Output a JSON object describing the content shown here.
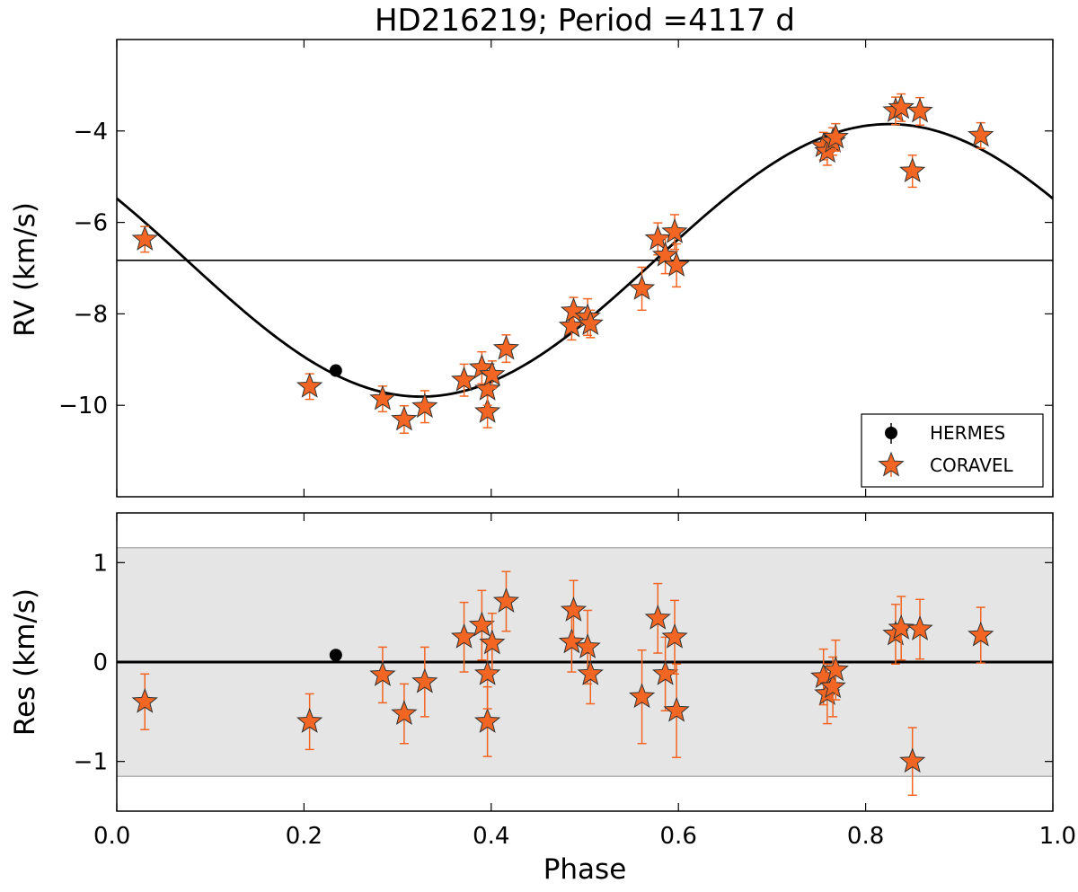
{
  "chart_data": [
    {
      "type": "scatter",
      "panel": "top",
      "title": "HD216219; Period =4117 d",
      "xlabel": "",
      "ylabel": "RV (km/s)",
      "xlim": [
        0.0,
        1.0
      ],
      "ylim": [
        -12.0,
        -2.0
      ],
      "yticks": [
        -4,
        -6,
        -8,
        -10
      ],
      "ytick_labels": [
        "−4",
        "−6",
        "−8",
        "−10"
      ],
      "grid": false,
      "legend_position": "lower-right",
      "systemic_velocity": -6.83,
      "fit": {
        "name": "orbit model",
        "mean": -6.83,
        "amplitude": 2.98,
        "phase_of_min": 0.325
      },
      "series": [
        {
          "name": "HERMES",
          "marker": "circle",
          "color": "#000000",
          "points": [
            {
              "x": 0.234,
              "y": -9.24,
              "err": 0.05
            }
          ]
        },
        {
          "name": "CORAVEL",
          "marker": "star",
          "color": "#f26522",
          "points": [
            {
              "x": 0.03,
              "y": -6.37,
              "err": 0.28
            },
            {
              "x": 0.206,
              "y": -9.59,
              "err": 0.28
            },
            {
              "x": 0.284,
              "y": -9.86,
              "err": 0.28
            },
            {
              "x": 0.307,
              "y": -10.31,
              "err": 0.3
            },
            {
              "x": 0.329,
              "y": -10.03,
              "err": 0.35
            },
            {
              "x": 0.371,
              "y": -9.45,
              "err": 0.35
            },
            {
              "x": 0.39,
              "y": -9.18,
              "err": 0.35
            },
            {
              "x": 0.396,
              "y": -10.14,
              "err": 0.35
            },
            {
              "x": 0.396,
              "y": -9.65,
              "err": 0.35
            },
            {
              "x": 0.401,
              "y": -9.33,
              "err": 0.3
            },
            {
              "x": 0.416,
              "y": -8.76,
              "err": 0.3
            },
            {
              "x": 0.486,
              "y": -8.27,
              "err": 0.3
            },
            {
              "x": 0.488,
              "y": -7.94,
              "err": 0.3
            },
            {
              "x": 0.503,
              "y": -8.07,
              "err": 0.4
            },
            {
              "x": 0.506,
              "y": -8.22,
              "err": 0.3
            },
            {
              "x": 0.561,
              "y": -7.45,
              "err": 0.47
            },
            {
              "x": 0.578,
              "y": -6.36,
              "err": 0.35
            },
            {
              "x": 0.586,
              "y": -6.72,
              "err": 0.4
            },
            {
              "x": 0.596,
              "y": -6.21,
              "err": 0.38
            },
            {
              "x": 0.598,
              "y": -6.94,
              "err": 0.47
            },
            {
              "x": 0.755,
              "y": -4.33,
              "err": 0.3
            },
            {
              "x": 0.759,
              "y": -4.45,
              "err": 0.3
            },
            {
              "x": 0.765,
              "y": -4.23,
              "err": 0.3
            },
            {
              "x": 0.768,
              "y": -4.14,
              "err": 0.3
            },
            {
              "x": 0.832,
              "y": -3.56,
              "err": 0.3
            },
            {
              "x": 0.838,
              "y": -3.49,
              "err": 0.3
            },
            {
              "x": 0.85,
              "y": -4.88,
              "err": 0.35
            },
            {
              "x": 0.858,
              "y": -3.57,
              "err": 0.3
            },
            {
              "x": 0.923,
              "y": -4.1,
              "err": 0.28
            }
          ]
        }
      ],
      "legend": [
        {
          "label": "HERMES",
          "marker": "circle"
        },
        {
          "label": "CORAVEL",
          "marker": "star"
        }
      ]
    },
    {
      "type": "scatter",
      "panel": "bottom",
      "xlabel": "Phase",
      "ylabel": "Res (km/s)",
      "xlim": [
        0.0,
        1.0
      ],
      "ylim": [
        -1.5,
        1.5
      ],
      "xticks": [
        0.0,
        0.2,
        0.4,
        0.6,
        0.8,
        1.0
      ],
      "xtick_labels": [
        "0.0",
        "0.2",
        "0.4",
        "0.6",
        "0.8",
        "1.0"
      ],
      "yticks": [
        1,
        0,
        -1
      ],
      "ytick_labels": [
        "1",
        "0",
        "−1"
      ],
      "band": [
        -1.15,
        1.15
      ],
      "zero_line": 0,
      "series": [
        {
          "name": "HERMES",
          "marker": "circle",
          "color": "#000000",
          "points": [
            {
              "x": 0.234,
              "y": 0.07,
              "err": 0.04
            }
          ]
        },
        {
          "name": "CORAVEL",
          "marker": "star",
          "color": "#f26522",
          "points": [
            {
              "x": 0.03,
              "y": -0.4,
              "err": 0.28
            },
            {
              "x": 0.206,
              "y": -0.6,
              "err": 0.28
            },
            {
              "x": 0.284,
              "y": -0.13,
              "err": 0.28
            },
            {
              "x": 0.307,
              "y": -0.52,
              "err": 0.3
            },
            {
              "x": 0.329,
              "y": -0.2,
              "err": 0.35
            },
            {
              "x": 0.371,
              "y": 0.25,
              "err": 0.35
            },
            {
              "x": 0.39,
              "y": 0.37,
              "err": 0.35
            },
            {
              "x": 0.396,
              "y": -0.6,
              "err": 0.35
            },
            {
              "x": 0.396,
              "y": -0.12,
              "err": 0.35
            },
            {
              "x": 0.401,
              "y": 0.19,
              "err": 0.3
            },
            {
              "x": 0.416,
              "y": 0.61,
              "err": 0.3
            },
            {
              "x": 0.486,
              "y": 0.2,
              "err": 0.3
            },
            {
              "x": 0.488,
              "y": 0.52,
              "err": 0.3
            },
            {
              "x": 0.503,
              "y": 0.15,
              "err": 0.37
            },
            {
              "x": 0.506,
              "y": -0.12,
              "err": 0.3
            },
            {
              "x": 0.561,
              "y": -0.35,
              "err": 0.47
            },
            {
              "x": 0.578,
              "y": 0.44,
              "err": 0.35
            },
            {
              "x": 0.586,
              "y": -0.12,
              "err": 0.37
            },
            {
              "x": 0.596,
              "y": 0.25,
              "err": 0.37
            },
            {
              "x": 0.598,
              "y": -0.49,
              "err": 0.47
            },
            {
              "x": 0.755,
              "y": -0.15,
              "err": 0.28
            },
            {
              "x": 0.759,
              "y": -0.32,
              "err": 0.3
            },
            {
              "x": 0.765,
              "y": -0.25,
              "err": 0.3
            },
            {
              "x": 0.768,
              "y": -0.08,
              "err": 0.3
            },
            {
              "x": 0.832,
              "y": 0.28,
              "err": 0.3
            },
            {
              "x": 0.838,
              "y": 0.34,
              "err": 0.32
            },
            {
              "x": 0.85,
              "y": -1.0,
              "err": 0.34
            },
            {
              "x": 0.858,
              "y": 0.33,
              "err": 0.3
            },
            {
              "x": 0.923,
              "y": 0.27,
              "err": 0.28
            }
          ]
        }
      ]
    }
  ],
  "colors": {
    "coravel_fill": "#f26522",
    "coravel_err": "#f26522",
    "hermes": "#000000",
    "band_fill": "#e5e5e5",
    "band_edge": "#b3b3b3"
  }
}
